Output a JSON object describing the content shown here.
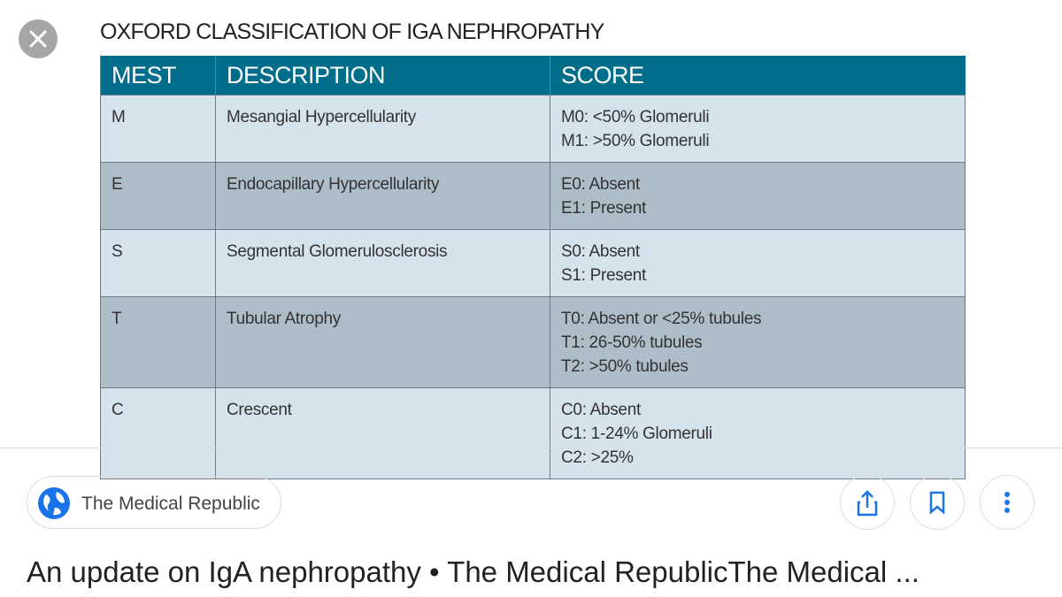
{
  "image": {
    "title": "OXFORD CLASSIFICATION OF IGA NEPHROPATHY",
    "table": {
      "header": [
        "MEST",
        "DESCRIPTION",
        "SCORE"
      ],
      "rows": [
        {
          "code": "M",
          "description": "Mesangial Hypercellularity",
          "score": [
            "M0: <50% Glomeruli",
            "M1: >50% Glomeruli"
          ]
        },
        {
          "code": "E",
          "description": "Endocapillary Hypercellularity",
          "score": [
            "E0: Absent",
            "E1: Present"
          ]
        },
        {
          "code": "S",
          "description": "Segmental Glomerulosclerosis",
          "score": [
            "S0: Absent",
            "S1: Present"
          ]
        },
        {
          "code": "T",
          "description": "Tubular Atrophy",
          "score": [
            "T0: Absent or <25% tubules",
            "T1: 26-50% tubules",
            "T2: >50% tubules"
          ]
        },
        {
          "code": "C",
          "description": "Crescent",
          "score": [
            "C0: Absent",
            "C1: 1-24% Glomeruli",
            "C2: >25%"
          ]
        }
      ]
    }
  },
  "source": "The Medical Republic",
  "caption": "An update on IgA nephropathy • The Medical RepublicThe Medical ..."
}
